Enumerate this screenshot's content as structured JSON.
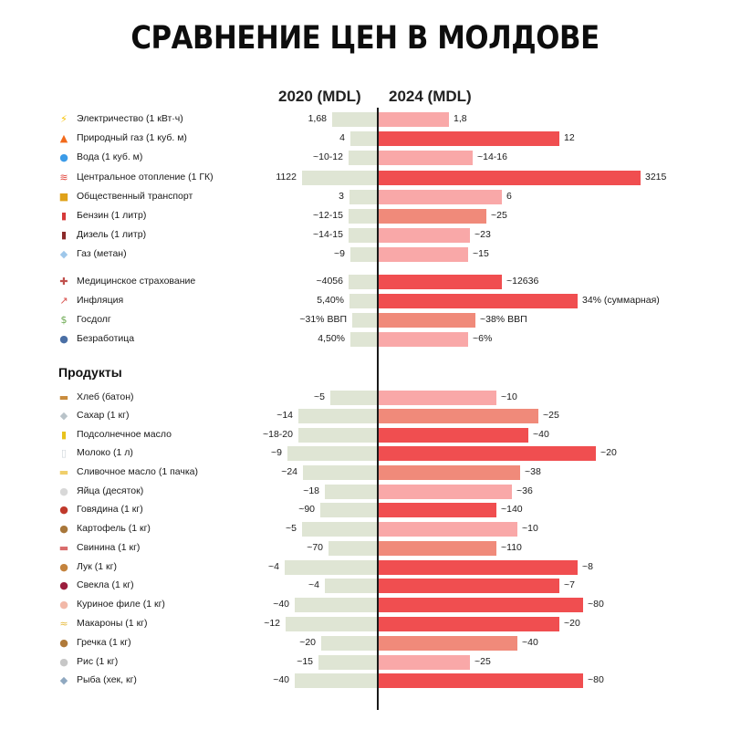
{
  "title": "СРАВНЕНИЕ ЦЕН В МОЛДОВЕ",
  "columns": {
    "left": "2020 (MDL)",
    "right": "2024 (MDL)"
  },
  "section_products": "Продукты",
  "colors": {
    "bar_2020": "#dfe5d4",
    "bar_2024_light": "#f9a8a8",
    "bar_2024_mid": "#f08a7a",
    "bar_2024_strong": "#f04e50"
  },
  "chart_data": {
    "type": "bar",
    "orientation": "horizontal-diverging",
    "title": "СРАВНЕНИЕ ЦЕН В МОЛДОВЕ",
    "series": [
      {
        "name": "2020 (MDL)"
      },
      {
        "name": "2024 (MDL)"
      }
    ],
    "rows": [
      {
        "label": "Электричество (1 кВт·ч)",
        "icon": "lightning-icon",
        "v2020": "1,68",
        "v2024": "1,8",
        "bar2020": 0.38,
        "bar2024": 0.27,
        "tone": "light"
      },
      {
        "label": "Природный газ (1 куб. м)",
        "icon": "fire-icon",
        "v2020": "4",
        "v2024": "12",
        "bar2020": 0.22,
        "bar2024": 0.69,
        "tone": "strong"
      },
      {
        "label": "Вода (1 куб. м)",
        "icon": "water-drop-icon",
        "v2020": "~10-12",
        "v2024": "~14-16",
        "bar2020": 0.24,
        "bar2024": 0.36,
        "tone": "light"
      },
      {
        "label": "Центральное отопление (1 ГК)",
        "icon": "hot-springs-icon",
        "v2020": "1122",
        "v2024": "3215",
        "bar2020": 0.63,
        "bar2024": 1.0,
        "tone": "strong"
      },
      {
        "label": "Общественный транспорт",
        "icon": "bus-icon",
        "v2020": "3",
        "v2024": "6",
        "bar2020": 0.23,
        "bar2024": 0.47,
        "tone": "light"
      },
      {
        "label": "Бензин (1 литр)",
        "icon": "fuel-pump-icon",
        "v2020": "~12-15",
        "v2024": "~25",
        "bar2020": 0.24,
        "bar2024": 0.41,
        "tone": "mid"
      },
      {
        "label": "Дизель (1 литр)",
        "icon": "oil-drum-icon",
        "v2020": "~14-15",
        "v2024": "~23",
        "bar2020": 0.24,
        "bar2024": 0.35,
        "tone": "light"
      },
      {
        "label": "Газ (метан)",
        "icon": "gas-diamond-icon",
        "v2020": "~9",
        "v2024": "~15",
        "bar2020": 0.22,
        "bar2024": 0.34,
        "tone": "light"
      },
      {
        "label": "Медицинское страхование",
        "icon": "hospital-icon",
        "v2020": "~4056",
        "v2024": "~12636",
        "bar2020": 0.24,
        "bar2024": 0.47,
        "tone": "strong"
      },
      {
        "label": "Инфляция",
        "icon": "chart-up-icon",
        "v2020": "5,40%",
        "v2024": "34% (суммарная)",
        "bar2020": 0.23,
        "bar2024": 0.76,
        "tone": "strong"
      },
      {
        "label": "Госдолг",
        "icon": "money-wings-icon",
        "v2020": "~31% ВВП",
        "v2024": "~38% ВВП",
        "bar2020": 0.21,
        "bar2024": 0.37,
        "tone": "mid"
      },
      {
        "label": "Безработица",
        "icon": "people-icon",
        "v2020": "4,50%",
        "v2024": "~6%",
        "bar2020": 0.22,
        "bar2024": 0.34,
        "tone": "light"
      },
      {
        "label": "Хлеб (батон)",
        "icon": "bread-icon",
        "v2020": "~5",
        "v2024": "~10",
        "bar2020": 0.39,
        "bar2024": 0.45,
        "tone": "light"
      },
      {
        "label": "Сахар (1 кг)",
        "icon": "sugar-icon",
        "v2020": "~14",
        "v2024": "~25",
        "bar2020": 0.66,
        "bar2024": 0.61,
        "tone": "mid"
      },
      {
        "label": "Подсолнечное масло",
        "icon": "oil-bottle-icon",
        "v2020": "~18-20",
        "v2024": "~40",
        "bar2020": 0.66,
        "bar2024": 0.57,
        "tone": "strong"
      },
      {
        "label": "Молоко (1 л)",
        "icon": "milk-glass-icon",
        "v2020": "~9",
        "v2024": "~20",
        "bar2020": 0.75,
        "bar2024": 0.83,
        "tone": "strong"
      },
      {
        "label": "Сливочное масло (1 пачка)",
        "icon": "butter-icon",
        "v2020": "~24",
        "v2024": "~38",
        "bar2020": 0.62,
        "bar2024": 0.54,
        "tone": "mid"
      },
      {
        "label": "Яйца (десяток)",
        "icon": "egg-icon",
        "v2020": "~18",
        "v2024": "~36",
        "bar2020": 0.44,
        "bar2024": 0.51,
        "tone": "light"
      },
      {
        "label": "Говядина (1 кг)",
        "icon": "meat-icon",
        "v2020": "~90",
        "v2024": "~140",
        "bar2020": 0.48,
        "bar2024": 0.45,
        "tone": "strong"
      },
      {
        "label": "Картофель (1 кг)",
        "icon": "potato-icon",
        "v2020": "~5",
        "v2024": "~10",
        "bar2020": 0.63,
        "bar2024": 0.53,
        "tone": "light"
      },
      {
        "label": "Свинина (1 кг)",
        "icon": "pork-icon",
        "v2020": "~70",
        "v2024": "~110",
        "bar2020": 0.41,
        "bar2024": 0.45,
        "tone": "mid"
      },
      {
        "label": "Лук (1 кг)",
        "icon": "onion-icon",
        "v2020": "~4",
        "v2024": "~8",
        "bar2020": 0.78,
        "bar2024": 0.76,
        "tone": "strong"
      },
      {
        "label": "Свекла (1 кг)",
        "icon": "beet-icon",
        "v2020": "~4",
        "v2024": "~7",
        "bar2020": 0.44,
        "bar2024": 0.69,
        "tone": "strong"
      },
      {
        "label": "Куриное филе (1 кг)",
        "icon": "chicken-icon",
        "v2020": "~40",
        "v2024": "~80",
        "bar2020": 0.69,
        "bar2024": 0.78,
        "tone": "strong"
      },
      {
        "label": "Макароны (1 кг)",
        "icon": "pasta-icon",
        "v2020": "~12",
        "v2024": "~20",
        "bar2020": 0.77,
        "bar2024": 0.69,
        "tone": "strong"
      },
      {
        "label": "Гречка (1 кг)",
        "icon": "buckwheat-icon",
        "v2020": "~20",
        "v2024": "~40",
        "bar2020": 0.47,
        "bar2024": 0.53,
        "tone": "mid"
      },
      {
        "label": "Рис (1 кг)",
        "icon": "rice-icon",
        "v2020": "~15",
        "v2024": "~25",
        "bar2020": 0.49,
        "bar2024": 0.35,
        "tone": "light"
      },
      {
        "label": "Рыба (хек, кг)",
        "icon": "fish-icon",
        "v2020": "~40",
        "v2024": "~80",
        "bar2020": 0.69,
        "bar2024": 0.78,
        "tone": "strong"
      }
    ]
  }
}
